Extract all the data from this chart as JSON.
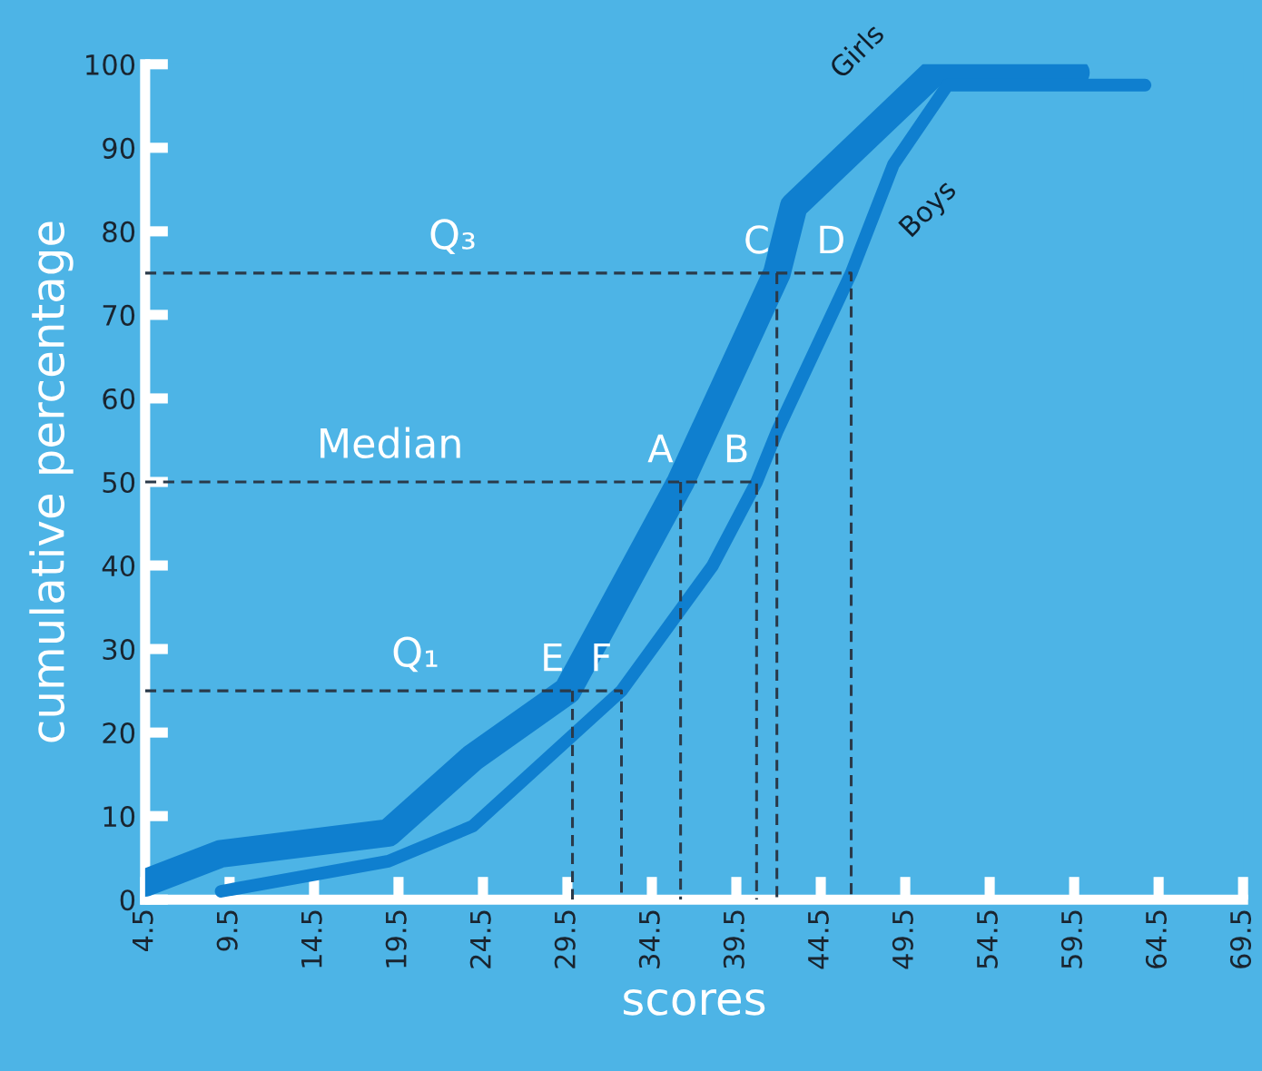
{
  "chart_data": {
    "type": "line",
    "xlabel": "scores",
    "ylabel": "cumulative percentage",
    "xlim": [
      4.5,
      69.5
    ],
    "ylim": [
      0,
      100
    ],
    "xticks": [
      4.5,
      9.5,
      14.5,
      19.5,
      24.5,
      29.5,
      34.5,
      39.5,
      44.5,
      49.5,
      54.5,
      59.5,
      64.5,
      69.5
    ],
    "yticks": [
      0,
      10,
      20,
      30,
      40,
      50,
      60,
      70,
      80,
      90,
      100
    ],
    "grid": false,
    "legend": false,
    "marker": "none",
    "series": [
      {
        "name": "Girls",
        "color": "#0f7fcf",
        "x": [
          4.5,
          9,
          18.9,
          23.9,
          29.5,
          36.2,
          41.9,
          42.9,
          51.2,
          59.6
        ],
        "values": [
          2,
          5.5,
          8,
          17,
          25,
          50,
          75,
          83,
          99,
          99
        ]
      },
      {
        "name": "Boys",
        "color": "#0f7fcf",
        "x": [
          9,
          18.9,
          23.9,
          32.7,
          38.1,
          40.7,
          41.9,
          46.3,
          48.8,
          52,
          63.7
        ],
        "values": [
          1,
          4.6,
          8.8,
          25,
          40,
          50,
          56,
          75,
          88,
          97.5,
          97.5
        ]
      },
      {
        "color": "#2a3a4a",
        "line_style": "dashed",
        "x": [
          4.5,
          32.7,
          32.7
        ],
        "values": [
          25,
          25,
          0
        ]
      },
      {
        "color": "#2a3a4a",
        "line_style": "dashed",
        "x": [
          29.8,
          29.8
        ],
        "values": [
          25,
          0
        ]
      },
      {
        "color": "#2a3a4a",
        "line_style": "dashed",
        "x": [
          4.5,
          40.7,
          40.7
        ],
        "values": [
          50,
          50,
          0
        ]
      },
      {
        "color": "#2a3a4a",
        "line_style": "dashed",
        "x": [
          36.2,
          36.2
        ],
        "values": [
          50,
          0
        ]
      },
      {
        "color": "#2a3a4a",
        "line_style": "dashed",
        "x": [
          4.5,
          46.3,
          46.3
        ],
        "values": [
          75,
          75,
          0
        ]
      },
      {
        "color": "#2a3a4a",
        "line_style": "dashed",
        "x": [
          41.9,
          41.9
        ],
        "values": [
          75,
          0
        ]
      }
    ],
    "annotations": [
      {
        "text": "Q₃",
        "x": 22.7,
        "y": 75
      },
      {
        "text": "Median",
        "x": 19,
        "y": 50
      },
      {
        "text": "Q₁",
        "x": 20.5,
        "y": 25
      },
      {
        "text": "A",
        "x": 36.2,
        "y": 50
      },
      {
        "text": "B",
        "x": 40.7,
        "y": 50
      },
      {
        "text": "C",
        "x": 41.9,
        "y": 75
      },
      {
        "text": "D",
        "x": 46.3,
        "y": 75
      },
      {
        "text": "E",
        "x": 29.8,
        "y": 25
      },
      {
        "text": "F",
        "x": 32.7,
        "y": 25
      }
    ]
  }
}
